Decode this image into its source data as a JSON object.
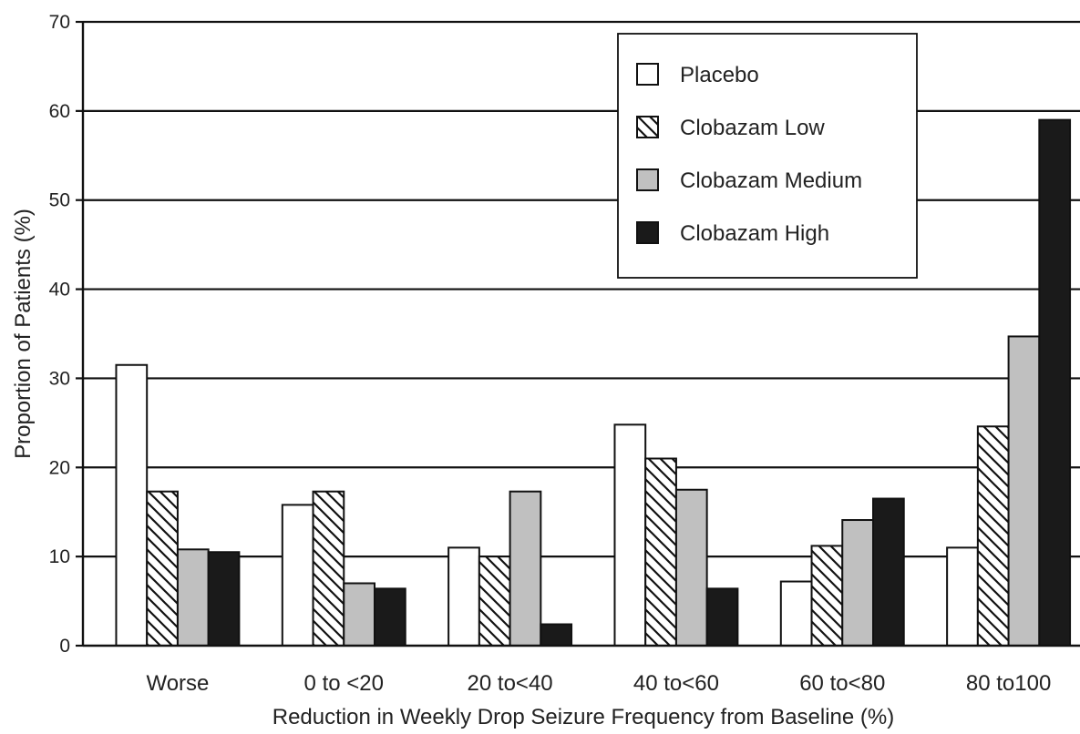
{
  "chart_data": {
    "type": "bar",
    "title": "",
    "xlabel": "Reduction in Weekly Drop Seizure Frequency from Baseline (%)",
    "ylabel": "Proportion of Patients (%)",
    "ylim": [
      0,
      70
    ],
    "yticks": [
      0,
      10,
      20,
      30,
      40,
      50,
      60,
      70
    ],
    "grid": "horizontal",
    "legend_position": "top-right",
    "categories": [
      "Worse",
      "0 to <20",
      "20 to<40",
      "40 to<60",
      "60 to<80",
      "80 to100"
    ],
    "series": [
      {
        "name": "Placebo",
        "fill": "white",
        "color": "#ffffff",
        "values": [
          31.5,
          15.8,
          11.0,
          24.8,
          7.2,
          11.0
        ]
      },
      {
        "name": "Clobazam Low",
        "fill": "hatch",
        "color": "#ffffff",
        "values": [
          17.3,
          17.3,
          10.0,
          21.0,
          11.2,
          24.6
        ]
      },
      {
        "name": "Clobazam Medium",
        "fill": "gray",
        "color": "#c0c0c0",
        "values": [
          10.8,
          7.0,
          17.3,
          17.5,
          14.1,
          34.7
        ]
      },
      {
        "name": "Clobazam High",
        "fill": "black",
        "color": "#1a1a1a",
        "values": [
          10.5,
          6.4,
          2.4,
          6.4,
          16.5,
          59.0
        ]
      }
    ]
  }
}
